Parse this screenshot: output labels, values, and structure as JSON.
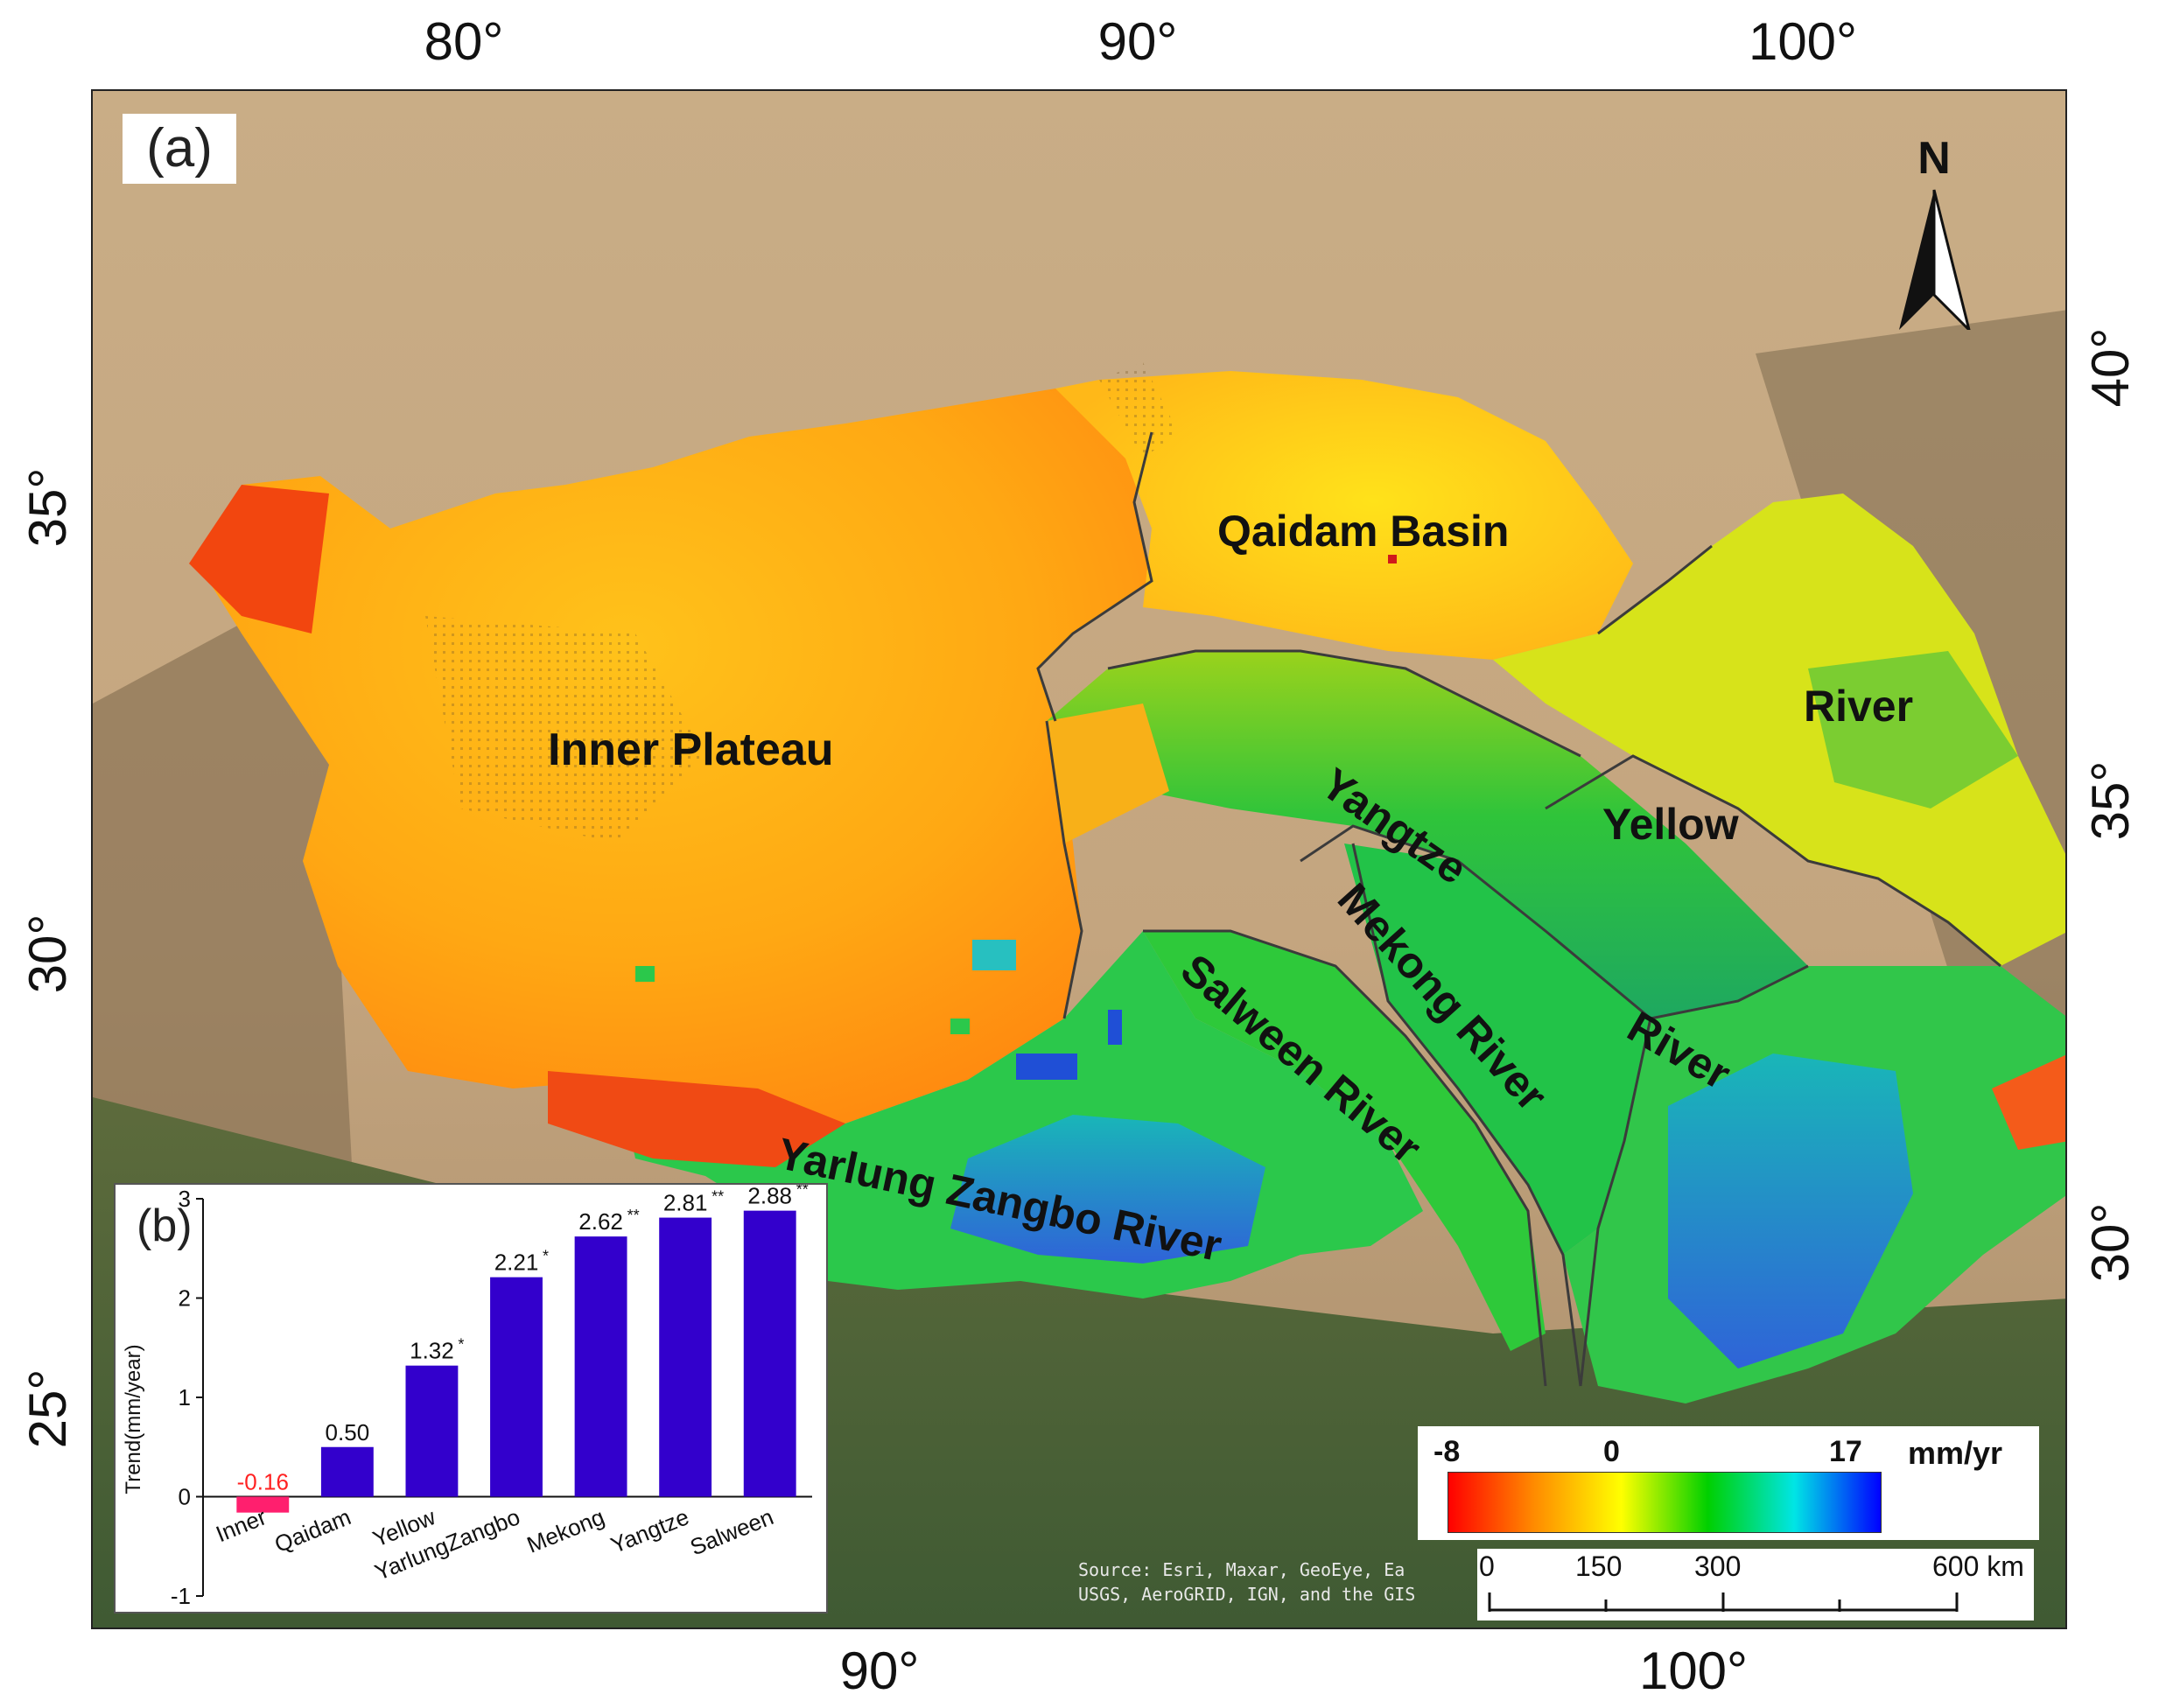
{
  "map": {
    "panel_label": "(a)",
    "north_label": "N",
    "top_ticks": [
      "80°",
      "90°",
      "100°"
    ],
    "bottom_ticks": [
      "90°",
      "100°"
    ],
    "left_ticks": [
      "35°",
      "30°",
      "25°"
    ],
    "right_ticks": [
      "40°",
      "35°",
      "30°"
    ],
    "regions": {
      "qaidam": "Qaidam Basin",
      "inner": "Inner Plateau",
      "yangtze": "Yangtze",
      "yangtze_river": "River",
      "yellow": "Yellow",
      "yellow_river": "River",
      "mekong": "Mekong River",
      "salween": "Salween River",
      "yarlung": "Yarlung Zangbo River"
    },
    "legend": {
      "min": "-8",
      "mid": "0",
      "max": "17",
      "unit": "mm/yr",
      "colors": [
        "#ff0000",
        "#ff8c00",
        "#ffff00",
        "#00d000",
        "#00e5e5",
        "#0000ff"
      ]
    },
    "scale_bar": {
      "labels": [
        "0",
        "150",
        "300",
        "600 km"
      ]
    },
    "source": "Source: Esri, Maxar, GeoEye, Ea\nUSGS, AeroGRID, IGN, and the GIS"
  },
  "chart_data": {
    "type": "bar",
    "panel_label": "(b)",
    "ylabel": "Trend(mm/year)",
    "categories": [
      "Inner",
      "Qaidam",
      "Yellow",
      "YarlungZangbo",
      "Mekong",
      "Yangtze",
      "Salween"
    ],
    "values": [
      -0.16,
      0.5,
      1.32,
      2.21,
      2.62,
      2.81,
      2.88
    ],
    "value_labels": [
      "-0.16",
      "0.50",
      "1.32",
      "2.21",
      "2.62",
      "2.81",
      "2.88"
    ],
    "significance": [
      "",
      "",
      "*",
      "*",
      "**",
      "**",
      "**"
    ],
    "colors": [
      "#ff1f6e",
      "#3300cc",
      "#3300cc",
      "#3300cc",
      "#3300cc",
      "#3300cc",
      "#3300cc"
    ],
    "label_colors": [
      "#ff2222",
      "#111111",
      "#111111",
      "#111111",
      "#111111",
      "#111111",
      "#111111"
    ],
    "ylim": [
      -1,
      3
    ],
    "yticks": [
      "-1",
      "0",
      "1",
      "2",
      "3"
    ]
  }
}
